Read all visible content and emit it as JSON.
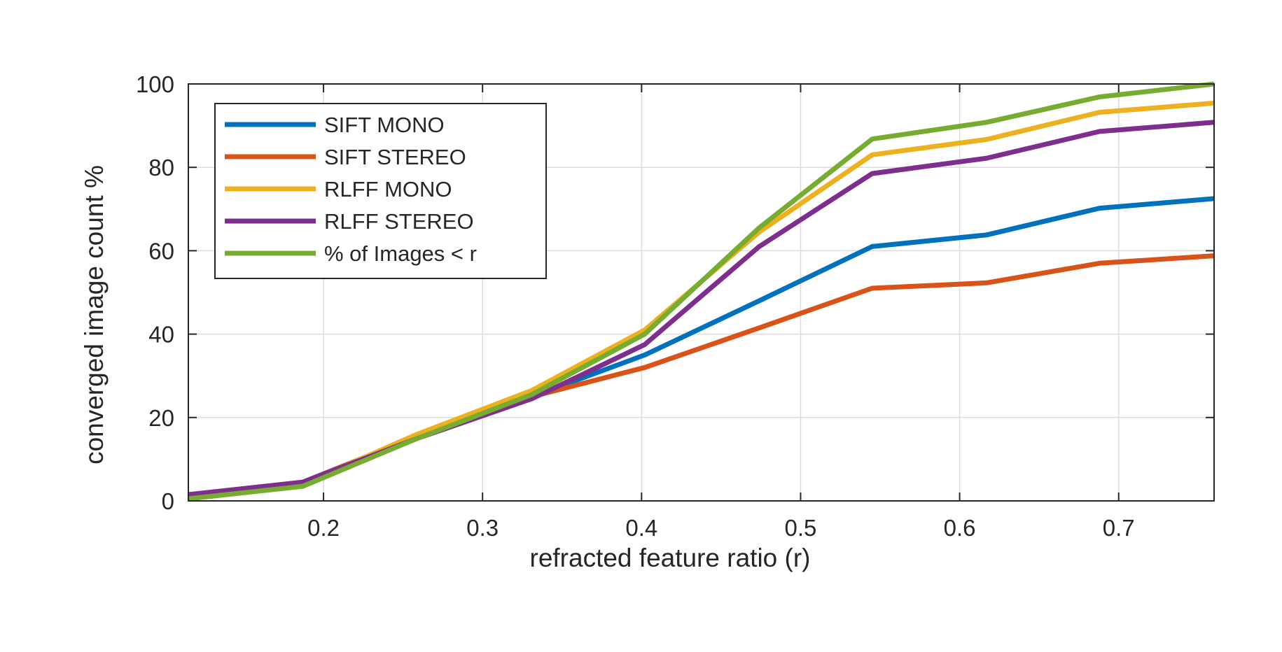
{
  "chart_data": {
    "type": "line",
    "title": "",
    "xlabel": "refracted feature ratio (r)",
    "ylabel": "converged image count %",
    "xlim": [
      0.115,
      0.76
    ],
    "ylim": [
      0,
      100
    ],
    "xticks": [
      "0.2",
      "0.3",
      "0.4",
      "0.5",
      "0.6",
      "0.7"
    ],
    "yticks": [
      "0",
      "20",
      "40",
      "60",
      "80",
      "100"
    ],
    "grid": true,
    "legend_position": "top-left",
    "x": [
      0.115,
      0.187,
      0.259,
      0.331,
      0.402,
      0.474,
      0.545,
      0.617,
      0.688,
      0.76
    ],
    "series": [
      {
        "name": "SIFT MONO",
        "color": "#0072BD",
        "values": [
          1.5,
          4.5,
          15.5,
          25.0,
          35.0,
          48.0,
          61.0,
          63.8,
          70.2,
          72.5
        ]
      },
      {
        "name": "SIFT STEREO",
        "color": "#D95319",
        "values": [
          1.5,
          4.5,
          15.5,
          25.0,
          32.0,
          41.5,
          51.0,
          52.3,
          57.0,
          58.8
        ]
      },
      {
        "name": "RLFF MONO",
        "color": "#EDB120",
        "values": [
          1.0,
          4.0,
          16.0,
          26.5,
          41.0,
          64.5,
          83.0,
          86.7,
          93.2,
          95.4
        ]
      },
      {
        "name": "RLFF STEREO",
        "color": "#7E2F8E",
        "values": [
          1.5,
          4.5,
          15.0,
          24.5,
          37.5,
          61.0,
          78.5,
          82.2,
          88.6,
          90.8
        ]
      },
      {
        "name": "% of Images < r",
        "color": "#77AC30",
        "values": [
          0.5,
          3.5,
          15.0,
          25.5,
          40.0,
          65.5,
          86.8,
          90.8,
          96.9,
          100.0
        ]
      }
    ]
  }
}
